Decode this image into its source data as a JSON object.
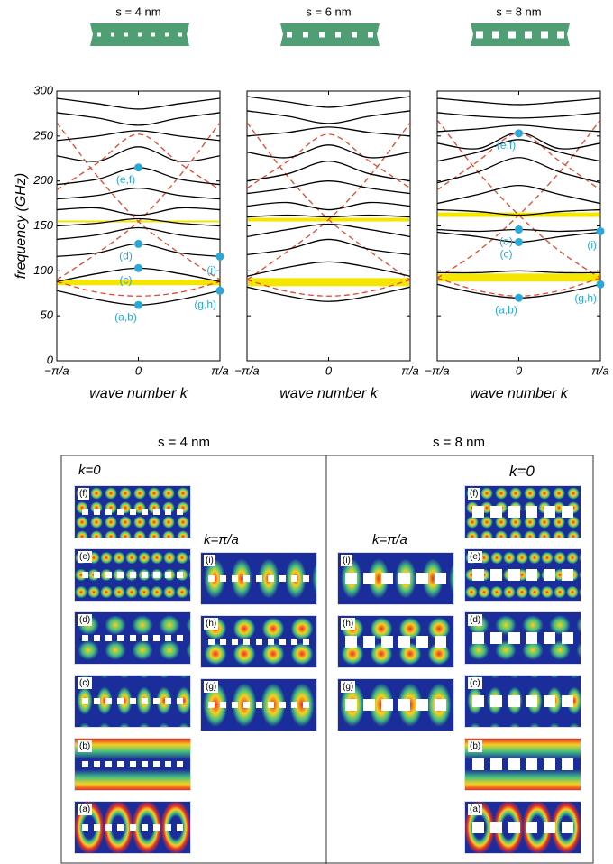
{
  "chart_data": [
    {
      "type": "line",
      "title": "s = 4 nm",
      "ylabel": "frequency (GHz)",
      "xlabel": "wave number k",
      "x": [
        -1,
        -0.5,
        0,
        0.5,
        1
      ],
      "xlim": [
        -1,
        1
      ],
      "xticks": [
        {
          "value": -1,
          "label": "−π/a"
        },
        0,
        {
          "value": 1,
          "label": "π/a"
        }
      ],
      "ylim": [
        0,
        300
      ],
      "yticks": [
        0,
        50,
        100,
        150,
        200,
        250,
        300
      ],
      "band_color": "#000000",
      "free_band_color": "#e8452c",
      "gap_color": "#f5e600",
      "point_color": "#2aa8d8",
      "bands": [
        [
          78,
          68,
          62,
          68,
          78
        ],
        [
          88,
          97,
          103,
          97,
          88
        ],
        [
          116,
          120,
          130,
          120,
          116
        ],
        [
          135,
          140,
          148,
          140,
          135
        ],
        [
          150,
          153,
          158,
          153,
          150
        ],
        [
          168,
          170,
          162,
          170,
          168
        ],
        [
          180,
          184,
          192,
          184,
          180
        ],
        [
          196,
          202,
          215,
          202,
          196
        ],
        [
          228,
          222,
          238,
          222,
          228
        ],
        [
          245,
          250,
          256,
          250,
          245
        ],
        [
          276,
          270,
          262,
          270,
          276
        ],
        [
          292,
          286,
          280,
          286,
          292
        ]
      ],
      "free_bands": [
        [
          88,
          76,
          72,
          76,
          88
        ],
        [
          90,
          120,
          155,
          205,
          265
        ],
        [
          265,
          205,
          155,
          120,
          90
        ],
        [
          190,
          220,
          252,
          220,
          190
        ]
      ],
      "gaps": [
        [
          84,
          90
        ],
        [
          154,
          156
        ]
      ],
      "points": [
        {
          "label": "(a,b)",
          "x": 0,
          "y": 62
        },
        {
          "label": "(c)",
          "x": 0,
          "y": 103
        },
        {
          "label": "(d)",
          "x": 0,
          "y": 130
        },
        {
          "label": "(e,f)",
          "x": 0,
          "y": 215
        },
        {
          "label": "(g,h)",
          "x": 1,
          "y": 78
        },
        {
          "label": "(i)",
          "x": 1,
          "y": 116
        }
      ]
    },
    {
      "type": "line",
      "title": "s = 6 nm",
      "xlabel": "wave number k",
      "x": [
        -1,
        -0.5,
        0,
        0.5,
        1
      ],
      "xlim": [
        -1,
        1
      ],
      "xticks": [
        {
          "value": -1,
          "label": "−π/a"
        },
        0,
        {
          "value": 1,
          "label": "π/a"
        }
      ],
      "ylim": [
        0,
        300
      ],
      "band_color": "#000000",
      "free_band_color": "#e8452c",
      "gap_color": "#f5e600",
      "bands": [
        [
          82,
          72,
          66,
          72,
          82
        ],
        [
          94,
          104,
          110,
          104,
          94
        ],
        [
          118,
          124,
          135,
          124,
          118
        ],
        [
          138,
          146,
          152,
          146,
          138
        ],
        [
          160,
          162,
          160,
          162,
          160
        ],
        [
          172,
          176,
          168,
          176,
          172
        ],
        [
          186,
          192,
          200,
          192,
          186
        ],
        [
          200,
          208,
          222,
          208,
          200
        ],
        [
          232,
          226,
          240,
          226,
          232
        ],
        [
          250,
          254,
          260,
          254,
          250
        ],
        [
          278,
          272,
          264,
          272,
          278
        ],
        [
          294,
          288,
          282,
          288,
          294
        ]
      ],
      "free_bands": [
        [
          90,
          77,
          72,
          77,
          90
        ],
        [
          90,
          122,
          157,
          205,
          265
        ],
        [
          265,
          205,
          157,
          122,
          90
        ],
        [
          192,
          222,
          252,
          222,
          192
        ]
      ],
      "gaps": [
        [
          83,
          92
        ],
        [
          155,
          159
        ]
      ]
    },
    {
      "type": "line",
      "title": "s = 8 nm",
      "xlabel": "wave number k",
      "x": [
        -1,
        -0.5,
        0,
        0.5,
        1
      ],
      "xlim": [
        -1,
        1
      ],
      "xticks": [
        {
          "value": -1,
          "label": "−π/a"
        },
        0,
        {
          "value": 1,
          "label": "π/a"
        }
      ],
      "ylim": [
        0,
        300
      ],
      "band_color": "#000000",
      "free_band_color": "#e8452c",
      "gap_color": "#f5e600",
      "point_color": "#2aa8d8",
      "bands": [
        [
          85,
          75,
          70,
          75,
          85
        ],
        [
          98,
          98,
          100,
          98,
          98
        ],
        [
          143,
          138,
          132,
          138,
          143
        ],
        [
          146,
          144,
          146,
          144,
          146
        ],
        [
          168,
          166,
          162,
          166,
          168
        ],
        [
          175,
          185,
          195,
          185,
          175
        ],
        [
          198,
          210,
          226,
          210,
          198
        ],
        [
          222,
          232,
          246,
          232,
          222
        ],
        [
          242,
          236,
          254,
          236,
          242
        ],
        [
          255,
          258,
          262,
          258,
          255
        ],
        [
          276,
          272,
          270,
          272,
          276
        ],
        [
          292,
          288,
          285,
          288,
          292
        ]
      ],
      "free_bands": [
        [
          92,
          78,
          72,
          78,
          92
        ],
        [
          92,
          122,
          162,
          210,
          268
        ],
        [
          268,
          210,
          162,
          122,
          92
        ],
        [
          190,
          222,
          253,
          222,
          190
        ]
      ],
      "gaps": [
        [
          88,
          97
        ],
        [
          160,
          165
        ]
      ],
      "points": [
        {
          "label": "(a,b)",
          "x": 0,
          "y": 70
        },
        {
          "label": "(c)",
          "x": 0,
          "y": 132
        },
        {
          "label": "(d)",
          "x": 0,
          "y": 146
        },
        {
          "label": "(e,f)",
          "x": 0,
          "y": 253
        },
        {
          "label": "(g,h)",
          "x": 1,
          "y": 85
        },
        {
          "label": "(i)",
          "x": 1,
          "y": 144
        }
      ]
    }
  ],
  "mode_panels": [
    {
      "title": "s = 4 nm",
      "k0_label": "k=0",
      "k0": [
        "(f)",
        "(e)",
        "(d)",
        "(c)",
        "(b)",
        "(a)"
      ],
      "kpi_label": "k=π/a",
      "kpi": [
        "(i)",
        "(h)",
        "(g)"
      ]
    },
    {
      "title": "s = 8 nm",
      "k0_label": "k=0",
      "k0": [
        "(f)",
        "(e)",
        "(d)",
        "(c)",
        "(b)",
        "(a)"
      ],
      "kpi_label": "k=π/a",
      "kpi": [
        "(i)",
        "(h)",
        "(g)"
      ]
    }
  ]
}
